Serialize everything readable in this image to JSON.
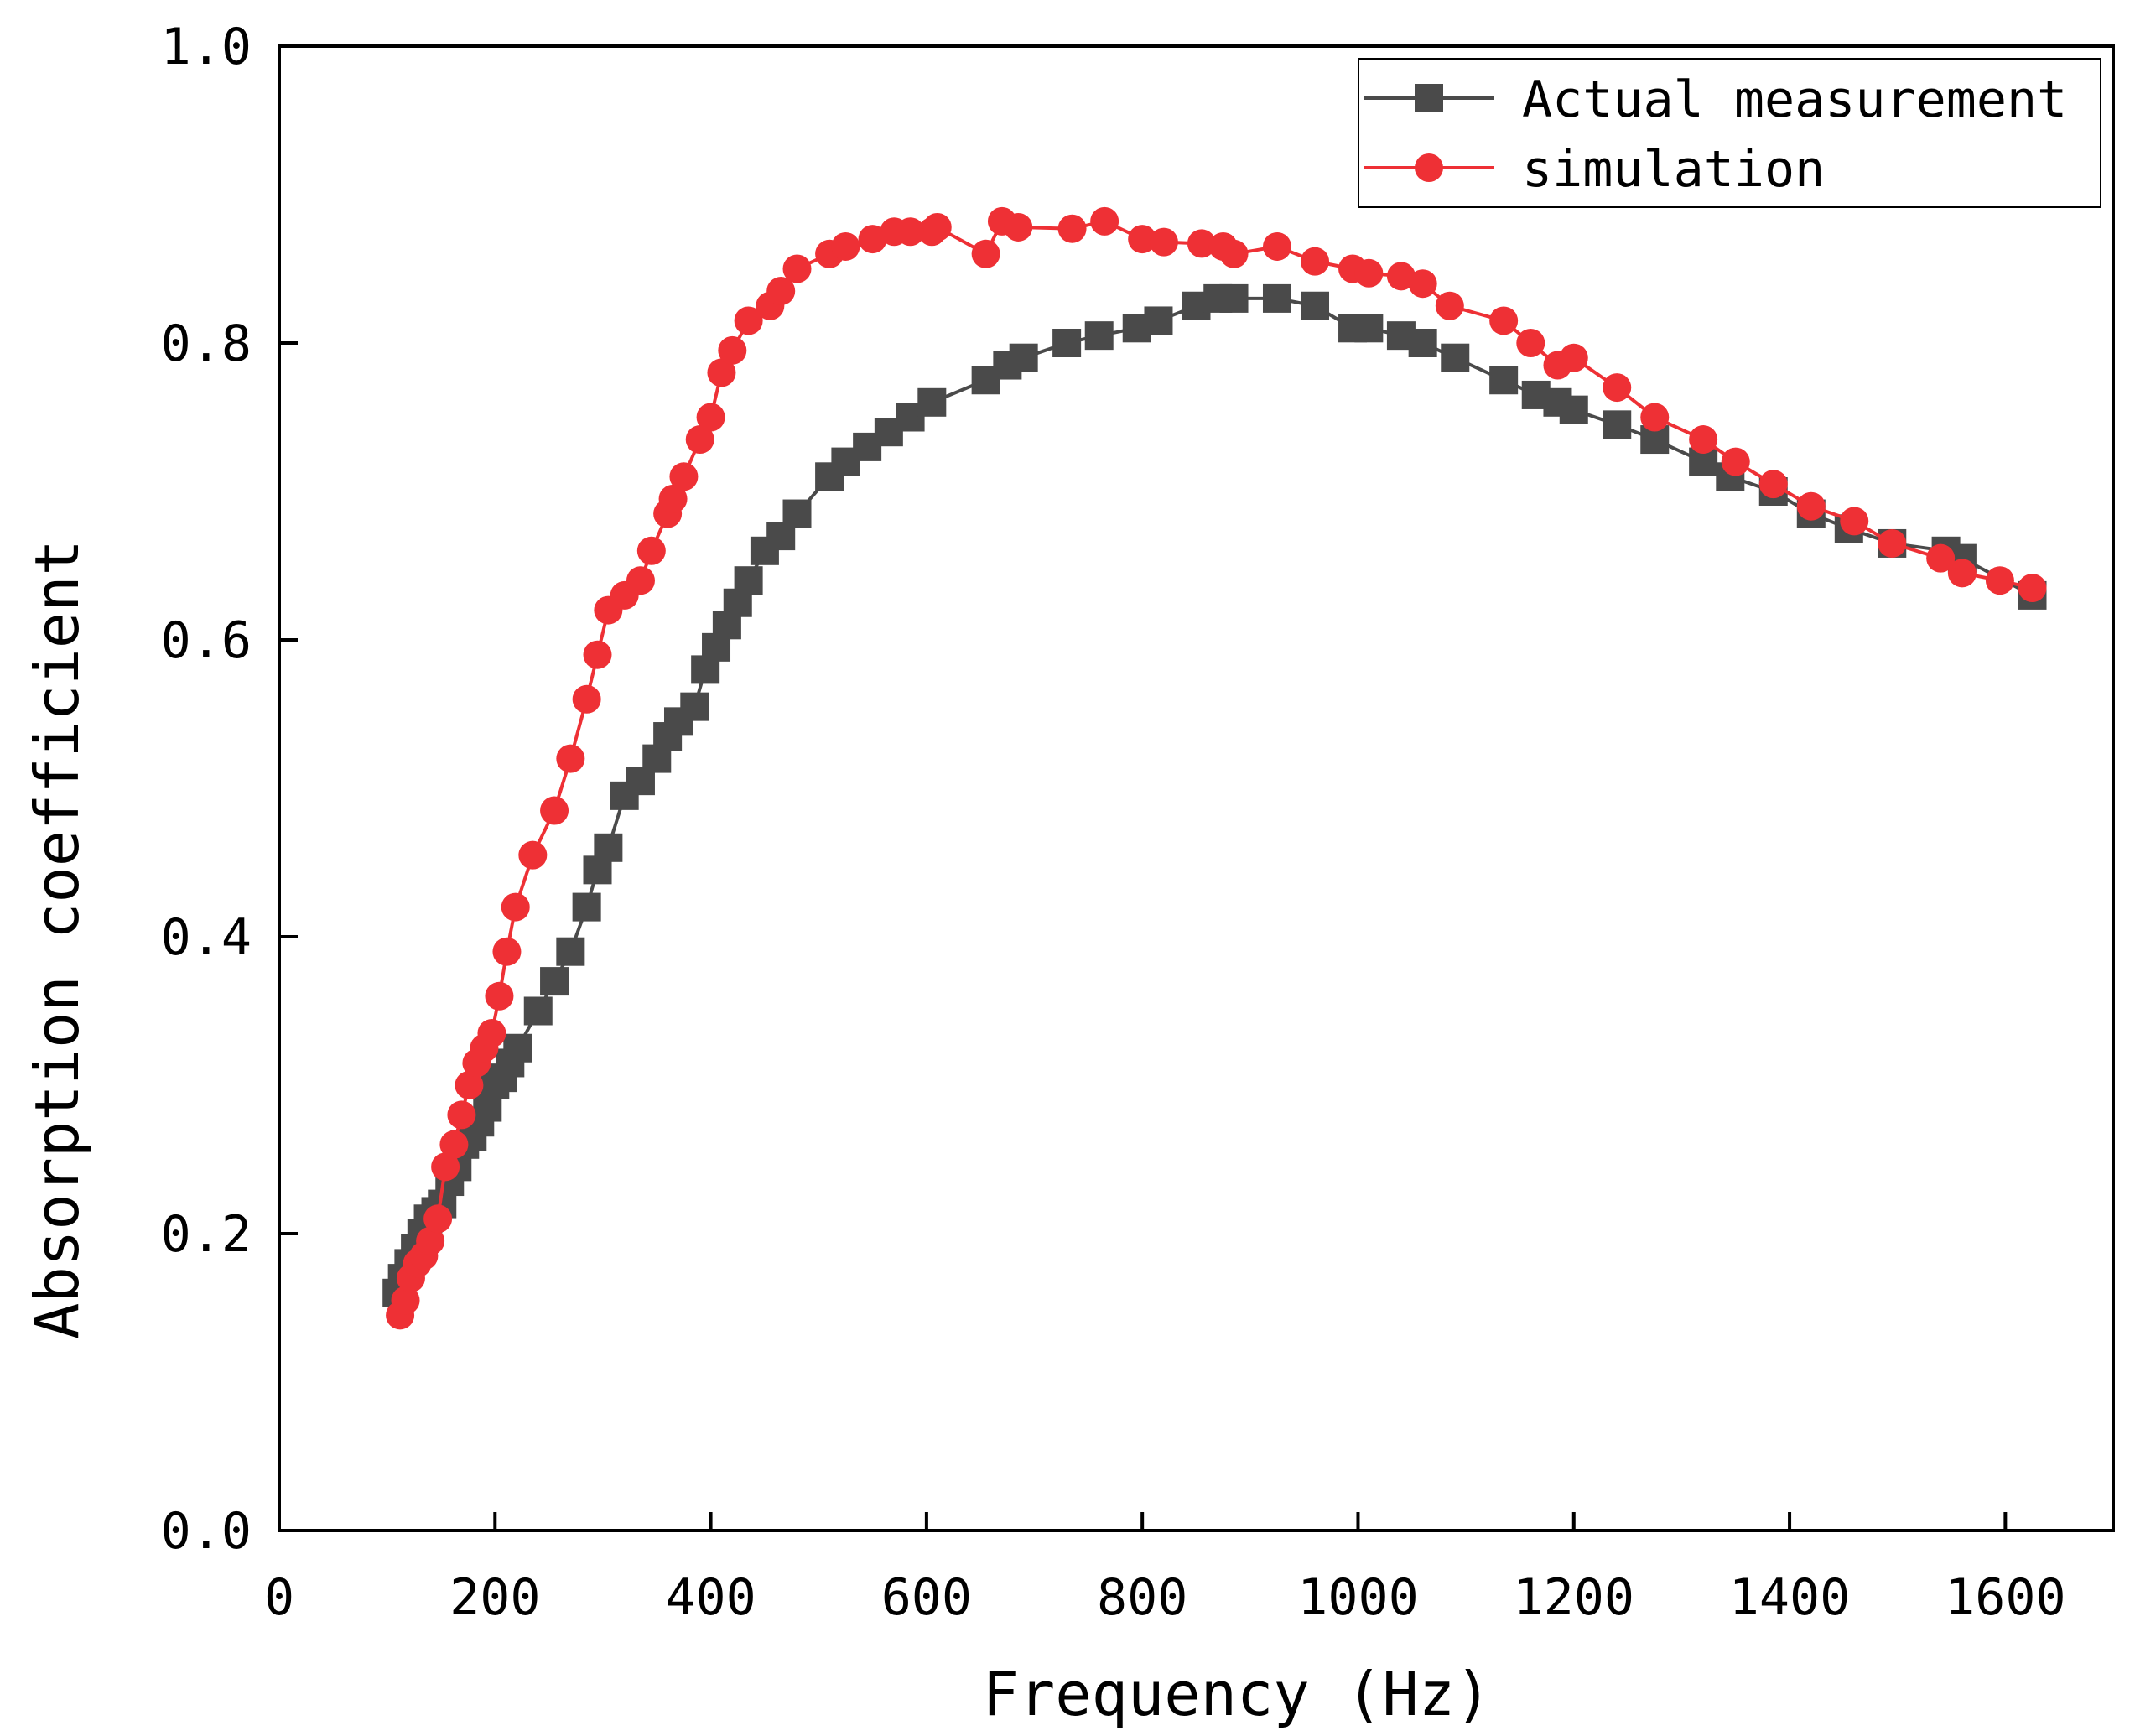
{
  "chart_data": {
    "type": "line",
    "title": "",
    "xlabel": "Frequency (Hz)",
    "ylabel": "Absorption coefficient",
    "xlim": [
      0,
      1700
    ],
    "ylim": [
      0.0,
      1.0
    ],
    "xticks": [
      0,
      200,
      400,
      600,
      800,
      1000,
      1200,
      1400,
      1600
    ],
    "xtick_labels": [
      "0",
      "200",
      "400",
      "600",
      "800",
      "1000",
      "1200",
      "1400",
      "1600"
    ],
    "yticks": [
      0.0,
      0.2,
      0.4,
      0.6,
      0.8,
      1.0
    ],
    "ytick_labels": [
      "0.0",
      "0.2",
      "0.4",
      "0.6",
      "0.8",
      "1.0"
    ],
    "grid": false,
    "legend_position": "top-right",
    "series": [
      {
        "name": "Actual measurement",
        "color": "#4a4a4a",
        "marker": "square",
        "x": [
          109,
          114,
          120,
          126,
          132,
          138,
          145,
          151,
          158,
          165,
          172,
          179,
          186,
          193,
          200,
          207,
          214,
          221,
          240,
          255,
          270,
          285,
          295,
          305,
          320,
          335,
          350,
          360,
          370,
          385,
          395,
          405,
          415,
          425,
          435,
          450,
          465,
          480,
          510,
          525,
          545,
          565,
          585,
          605,
          655,
          675,
          690,
          730,
          760,
          795,
          815,
          850,
          870,
          885,
          925,
          960,
          995,
          1010,
          1040,
          1060,
          1090,
          1135,
          1165,
          1185,
          1200,
          1240,
          1275,
          1320,
          1345,
          1385,
          1420,
          1455,
          1495,
          1545,
          1560,
          1625
        ],
        "y": [
          0.16,
          0.17,
          0.18,
          0.19,
          0.2,
          0.21,
          0.215,
          0.22,
          0.235,
          0.245,
          0.26,
          0.265,
          0.275,
          0.285,
          0.3,
          0.305,
          0.315,
          0.325,
          0.35,
          0.37,
          0.39,
          0.42,
          0.445,
          0.46,
          0.495,
          0.505,
          0.52,
          0.535,
          0.545,
          0.555,
          0.58,
          0.595,
          0.61,
          0.625,
          0.64,
          0.66,
          0.67,
          0.685,
          0.71,
          0.72,
          0.73,
          0.74,
          0.75,
          0.76,
          0.775,
          0.785,
          0.79,
          0.8,
          0.805,
          0.81,
          0.815,
          0.825,
          0.83,
          0.83,
          0.83,
          0.825,
          0.81,
          0.81,
          0.805,
          0.8,
          0.79,
          0.775,
          0.765,
          0.76,
          0.755,
          0.745,
          0.735,
          0.72,
          0.71,
          0.7,
          0.685,
          0.675,
          0.665,
          0.66,
          0.655,
          0.63
        ]
      },
      {
        "name": "simulation",
        "color": "#ee3035",
        "marker": "circle",
        "x": [
          112,
          117,
          122,
          128,
          134,
          140,
          147,
          154,
          162,
          169,
          176,
          183,
          190,
          197,
          204,
          211,
          219,
          235,
          255,
          270,
          285,
          295,
          305,
          320,
          335,
          345,
          360,
          365,
          375,
          390,
          400,
          410,
          420,
          435,
          455,
          465,
          480,
          510,
          525,
          550,
          570,
          585,
          605,
          610,
          655,
          670,
          685,
          735,
          765,
          800,
          820,
          855,
          875,
          885,
          925,
          960,
          995,
          1010,
          1040,
          1060,
          1085,
          1135,
          1160,
          1185,
          1200,
          1240,
          1275,
          1320,
          1350,
          1385,
          1420,
          1460,
          1495,
          1540,
          1560,
          1595,
          1625
        ],
        "y": [
          0.145,
          0.155,
          0.17,
          0.18,
          0.185,
          0.195,
          0.21,
          0.245,
          0.26,
          0.28,
          0.3,
          0.315,
          0.325,
          0.335,
          0.36,
          0.39,
          0.42,
          0.455,
          0.485,
          0.52,
          0.56,
          0.59,
          0.62,
          0.63,
          0.64,
          0.66,
          0.685,
          0.695,
          0.71,
          0.735,
          0.75,
          0.78,
          0.795,
          0.815,
          0.825,
          0.835,
          0.85,
          0.86,
          0.865,
          0.87,
          0.875,
          0.875,
          0.875,
          0.878,
          0.86,
          0.882,
          0.878,
          0.877,
          0.882,
          0.87,
          0.868,
          0.867,
          0.865,
          0.86,
          0.865,
          0.855,
          0.85,
          0.847,
          0.845,
          0.84,
          0.825,
          0.815,
          0.8,
          0.785,
          0.79,
          0.77,
          0.75,
          0.735,
          0.72,
          0.705,
          0.69,
          0.68,
          0.665,
          0.655,
          0.645,
          0.64,
          0.635
        ]
      }
    ]
  }
}
